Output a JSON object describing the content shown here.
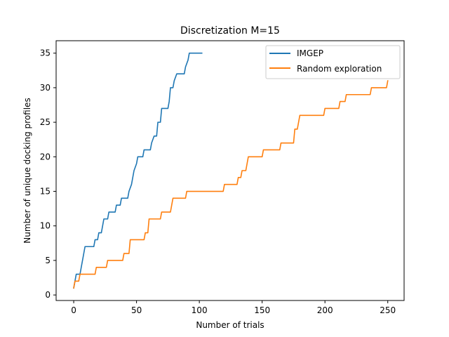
{
  "chart_data": {
    "type": "line",
    "title": "Discretization M=15",
    "xlabel": "Number of trials",
    "ylabel": "Number of unique docking profiles",
    "xlim": [
      -14,
      263
    ],
    "ylim": [
      -0.8,
      36.8
    ],
    "xticks": [
      0,
      50,
      100,
      150,
      200,
      250
    ],
    "yticks": [
      0,
      5,
      10,
      15,
      20,
      25,
      30,
      35
    ],
    "grid": false,
    "legend_position": "top-right",
    "series": [
      {
        "name": "IMGEP",
        "color": "#1f77b4",
        "points": [
          [
            0,
            1
          ],
          [
            1,
            2
          ],
          [
            2,
            3
          ],
          [
            5,
            3
          ],
          [
            6,
            4
          ],
          [
            7,
            5
          ],
          [
            8,
            6
          ],
          [
            9,
            7
          ],
          [
            16,
            7
          ],
          [
            17,
            8
          ],
          [
            19,
            8
          ],
          [
            20,
            9
          ],
          [
            22,
            9
          ],
          [
            23,
            10
          ],
          [
            24,
            11
          ],
          [
            27,
            11
          ],
          [
            28,
            12
          ],
          [
            33,
            12
          ],
          [
            34,
            13
          ],
          [
            37,
            13
          ],
          [
            38,
            14
          ],
          [
            43,
            14
          ],
          [
            44,
            15
          ],
          [
            46,
            16
          ],
          [
            47,
            17
          ],
          [
            48,
            18
          ],
          [
            50,
            19
          ],
          [
            51,
            20
          ],
          [
            55,
            20
          ],
          [
            56,
            21
          ],
          [
            61,
            21
          ],
          [
            62,
            22
          ],
          [
            64,
            23
          ],
          [
            66,
            23
          ],
          [
            67,
            25
          ],
          [
            69,
            25
          ],
          [
            70,
            27
          ],
          [
            75,
            27
          ],
          [
            76,
            28
          ],
          [
            77,
            30
          ],
          [
            79,
            30
          ],
          [
            80,
            31
          ],
          [
            82,
            32
          ],
          [
            88,
            32
          ],
          [
            89,
            33
          ],
          [
            91,
            34
          ],
          [
            92,
            35
          ],
          [
            102,
            35
          ]
        ]
      },
      {
        "name": "Random exploration",
        "color": "#ff7f0e",
        "points": [
          [
            0,
            1
          ],
          [
            1,
            2
          ],
          [
            4,
            2
          ],
          [
            5,
            3
          ],
          [
            17,
            3
          ],
          [
            18,
            4
          ],
          [
            26,
            4
          ],
          [
            27,
            5
          ],
          [
            39,
            5
          ],
          [
            40,
            6
          ],
          [
            44,
            6
          ],
          [
            45,
            8
          ],
          [
            56,
            8
          ],
          [
            57,
            9
          ],
          [
            59,
            9
          ],
          [
            60,
            11
          ],
          [
            69,
            11
          ],
          [
            70,
            12
          ],
          [
            77,
            12
          ],
          [
            78,
            13
          ],
          [
            79,
            14
          ],
          [
            89,
            14
          ],
          [
            90,
            15
          ],
          [
            119,
            15
          ],
          [
            120,
            16
          ],
          [
            130,
            16
          ],
          [
            131,
            17
          ],
          [
            133,
            17
          ],
          [
            134,
            18
          ],
          [
            137,
            18
          ],
          [
            138,
            19
          ],
          [
            139,
            20
          ],
          [
            150,
            20
          ],
          [
            151,
            21
          ],
          [
            164,
            21
          ],
          [
            165,
            22
          ],
          [
            175,
            22
          ],
          [
            176,
            24
          ],
          [
            178,
            24
          ],
          [
            179,
            25
          ],
          [
            180,
            26
          ],
          [
            199,
            26
          ],
          [
            200,
            27
          ],
          [
            211,
            27
          ],
          [
            212,
            28
          ],
          [
            216,
            28
          ],
          [
            217,
            29
          ],
          [
            236,
            29
          ],
          [
            237,
            30
          ],
          [
            249,
            30
          ],
          [
            250,
            31
          ]
        ]
      }
    ]
  }
}
